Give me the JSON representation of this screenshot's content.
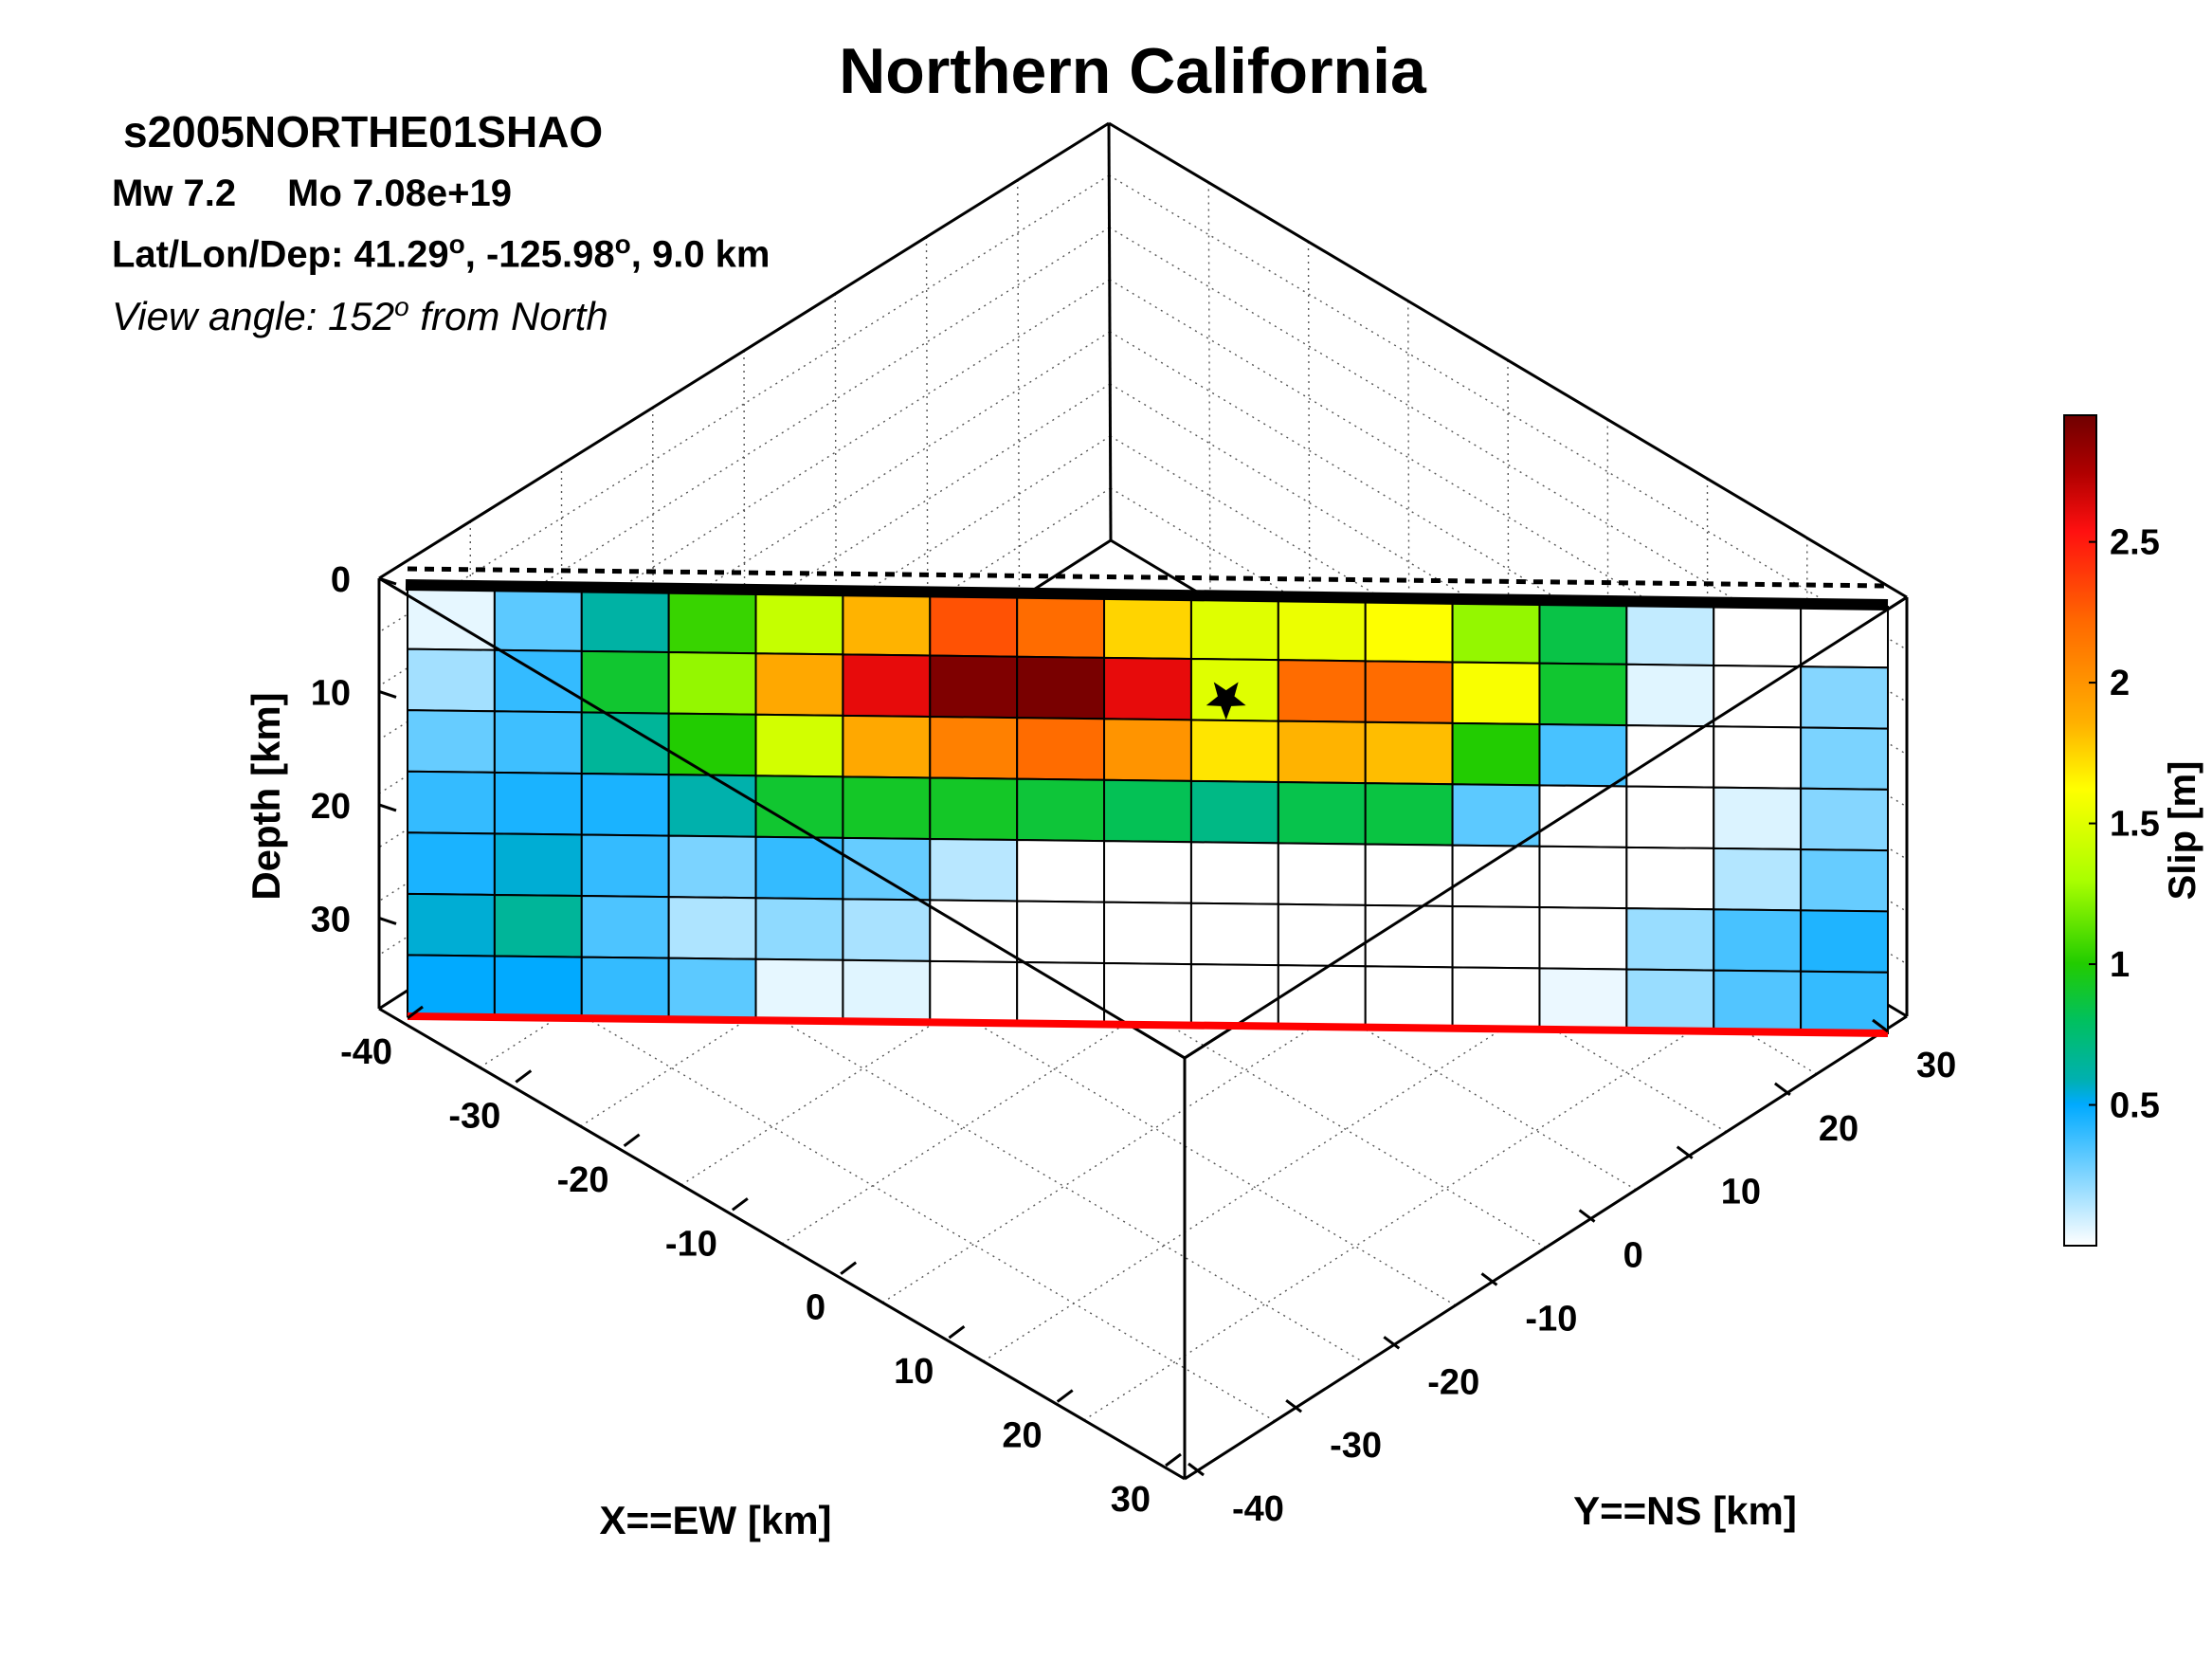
{
  "chart_data": {
    "type": "heatmap",
    "title": "Northern California",
    "event_id": "s2005NORTHE01SHAO",
    "mw_label": "Mw 7.2",
    "mo_label": "Mo 7.08e+19",
    "location_label": "Lat/Lon/Dep: 41.29",
    "location_lon": ", -125.98",
    "location_dep": ", 9.0 km",
    "degree_symbol": "o",
    "view_prefix": "View angle: 152",
    "view_suffix": " from North",
    "zlabel": "Depth [km]",
    "xlabel": "X==EW [km]",
    "ylabel": "Y==NS [km]",
    "colorbar_label": "Slip [m]",
    "z_ticks": [
      "0",
      "10",
      "20",
      "30"
    ],
    "x_ticks": [
      "-40",
      "-30",
      "-20",
      "-10",
      "0",
      "10",
      "20",
      "30"
    ],
    "y_ticks": [
      "30",
      "20",
      "10",
      "0",
      "-10",
      "-20",
      "-30",
      "-40"
    ],
    "colorbar_ticks": [
      "2.5",
      "2",
      "1.5",
      "1",
      "0.5"
    ],
    "colorbar_tick_values": [
      2.5,
      2,
      1.5,
      1,
      0.5
    ],
    "clim": [
      0,
      2.95
    ],
    "zlim": [
      0,
      38
    ],
    "grid": true,
    "hypocenter": {
      "row": 1,
      "col": 9.4,
      "marker": "star"
    },
    "columns": 17,
    "rows": 7,
    "slip": [
      [
        0.05,
        0.32,
        0.62,
        1.05,
        1.4,
        1.85,
        2.3,
        2.2,
        1.75,
        1.5,
        1.55,
        1.62,
        1.25,
        0.85,
        0.12,
        0.0,
        0.0
      ],
      [
        0.18,
        0.4,
        0.9,
        1.25,
        1.9,
        2.6,
        2.9,
        2.92,
        2.6,
        1.5,
        2.2,
        2.2,
        1.6,
        0.9,
        0.06,
        0.0,
        0.24
      ],
      [
        0.3,
        0.38,
        0.65,
        1.0,
        1.45,
        1.9,
        2.1,
        2.2,
        2.0,
        1.7,
        1.85,
        1.82,
        1.0,
        0.36,
        0.0,
        0.0,
        0.26
      ],
      [
        0.4,
        0.45,
        0.45,
        0.6,
        0.9,
        0.92,
        0.92,
        0.88,
        0.82,
        0.7,
        0.84,
        0.86,
        0.32,
        0.0,
        0.0,
        0.07,
        0.24
      ],
      [
        0.45,
        0.55,
        0.4,
        0.26,
        0.4,
        0.3,
        0.14,
        0.0,
        0.0,
        0.0,
        0.0,
        0.0,
        0.0,
        0.0,
        0.0,
        0.15,
        0.3
      ],
      [
        0.55,
        0.65,
        0.35,
        0.16,
        0.22,
        0.17,
        0.0,
        0.0,
        0.0,
        0.0,
        0.0,
        0.0,
        0.0,
        0.0,
        0.2,
        0.36,
        0.44
      ],
      [
        0.5,
        0.5,
        0.4,
        0.32,
        0.05,
        0.06,
        0.0,
        0.0,
        0.0,
        0.0,
        0.0,
        0.0,
        0.0,
        0.04,
        0.2,
        0.34,
        0.4
      ]
    ],
    "colorscale": [
      [
        0.0,
        "#ffffff"
      ],
      [
        0.17,
        "#00aaff"
      ],
      [
        0.2,
        "#00b0b0"
      ],
      [
        0.27,
        "#00c060"
      ],
      [
        0.34,
        "#22cc00"
      ],
      [
        0.44,
        "#aaff00"
      ],
      [
        0.55,
        "#ffff00"
      ],
      [
        0.63,
        "#ffb000"
      ],
      [
        0.75,
        "#ff6a00"
      ],
      [
        0.86,
        "#ff1010"
      ],
      [
        0.93,
        "#b00000"
      ],
      [
        1.0,
        "#700000"
      ]
    ],
    "accent_colors": {
      "top_edge": "#000000",
      "bottom_edge": "#ff0000"
    }
  }
}
